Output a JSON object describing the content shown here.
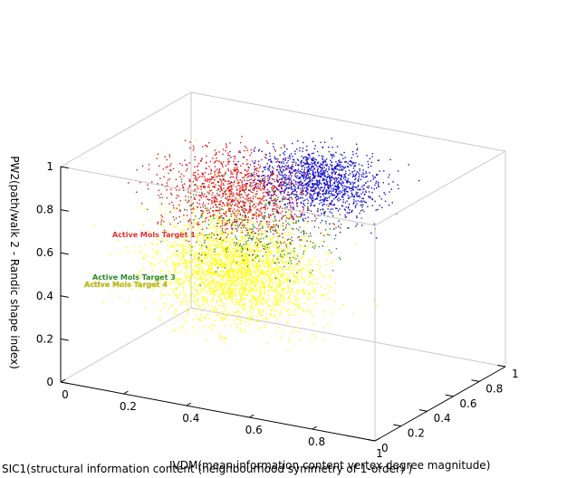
{
  "chart_data": {
    "type": "scatter",
    "dimensions": 3,
    "title": "",
    "xlabel": "SIC1(structural information content (neighbourhood symmetry of 1-order) )",
    "ylabel": "IVDM(mean information content vertex degree magnitude)",
    "zlabel": "PW2(path/walk 2 - Randic shape index)",
    "xlim": [
      0,
      1
    ],
    "ylim": [
      0,
      1
    ],
    "zlim": [
      0,
      1
    ],
    "x_ticks": [
      "0",
      "0.2",
      "0.4",
      "0.6",
      "0.8",
      "1"
    ],
    "y_ticks": [
      "0",
      "0.2",
      "0.4",
      "0.6",
      "0.8",
      "1"
    ],
    "z_ticks": [
      "0",
      "0.2",
      "0.4",
      "0.6",
      "0.8",
      "1"
    ],
    "grid": false,
    "legend": "none",
    "series": [
      {
        "color": "#ffff00",
        "points": 2600,
        "center": [
          0.38,
          0.42,
          0.48
        ],
        "spread": [
          0.12,
          0.11,
          0.11
        ]
      },
      {
        "color": "#e01010",
        "points": 1200,
        "center": [
          0.36,
          0.5,
          0.8
        ],
        "spread": [
          0.11,
          0.1,
          0.09
        ]
      },
      {
        "color": "#1010cc",
        "points": 1300,
        "center": [
          0.56,
          0.64,
          0.86
        ],
        "spread": [
          0.09,
          0.08,
          0.07
        ]
      },
      {
        "color": "#2a8a2a",
        "points": 350,
        "center": [
          0.42,
          0.5,
          0.65
        ],
        "spread": [
          0.12,
          0.1,
          0.09
        ]
      }
    ],
    "annotations": [
      {
        "text": "Active Mols Target 1",
        "color": "#e03030"
      },
      {
        "text": "Active Mols Target 3",
        "color": "#2a8a2a"
      },
      {
        "text": "Active Mols Target 4",
        "color": "#c8c800"
      }
    ]
  }
}
